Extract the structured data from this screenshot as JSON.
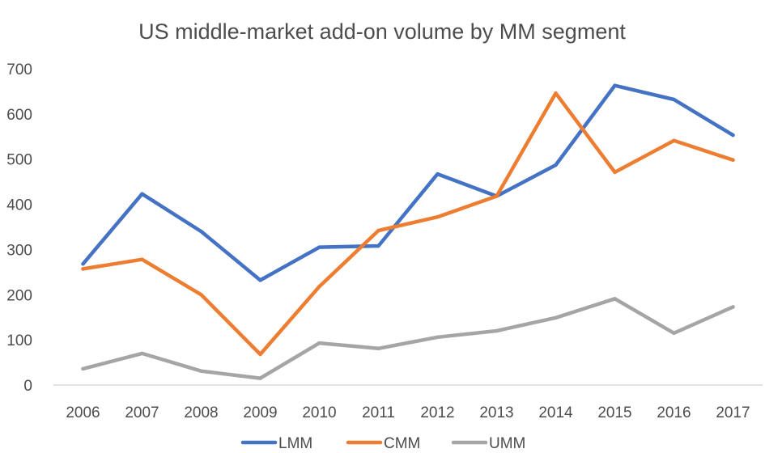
{
  "chart_data": {
    "type": "line",
    "title": "US middle-market add-on volume by MM segment",
    "xlabel": "",
    "ylabel": "",
    "categories": [
      "2006",
      "2007",
      "2008",
      "2009",
      "2010",
      "2011",
      "2012",
      "2013",
      "2014",
      "2015",
      "2016",
      "2017"
    ],
    "ylim": [
      0,
      700
    ],
    "yticks": [
      0,
      100,
      200,
      300,
      400,
      500,
      600,
      700
    ],
    "grid": false,
    "legend_position": "bottom",
    "series": [
      {
        "name": "LMM",
        "color": "#4472c4",
        "values": [
          268,
          423,
          340,
          232,
          305,
          308,
          467,
          418,
          487,
          663,
          632,
          553
        ]
      },
      {
        "name": "CMM",
        "color": "#ed7d31",
        "values": [
          257,
          278,
          200,
          68,
          218,
          342,
          372,
          418,
          646,
          471,
          541,
          498
        ]
      },
      {
        "name": "UMM",
        "color": "#a5a5a5",
        "values": [
          36,
          70,
          31,
          15,
          93,
          81,
          106,
          120,
          149,
          191,
          115,
          173
        ]
      }
    ]
  }
}
